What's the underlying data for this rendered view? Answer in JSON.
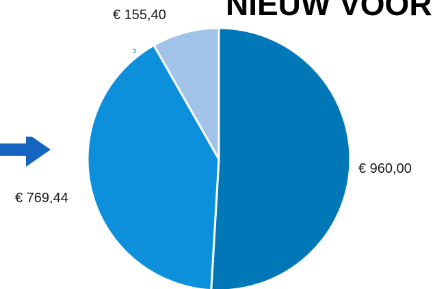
{
  "heading": "NIEUW VOOR",
  "arrow": {
    "icon": "right-arrow-icon",
    "color": "#1565C0"
  },
  "chart_data": {
    "type": "pie",
    "title": "",
    "legend": "none",
    "slices": [
      {
        "label": "€ 960,00",
        "value": 960.0,
        "color": "#0078B8"
      },
      {
        "label": "€ 769,44",
        "value": 769.44,
        "color": "#0C90DC"
      },
      {
        "label": "€ 155,40",
        "value": 155.4,
        "color": "#A1C3E8",
        "marker": "3",
        "marker_color": "#00A2B5"
      }
    ]
  }
}
